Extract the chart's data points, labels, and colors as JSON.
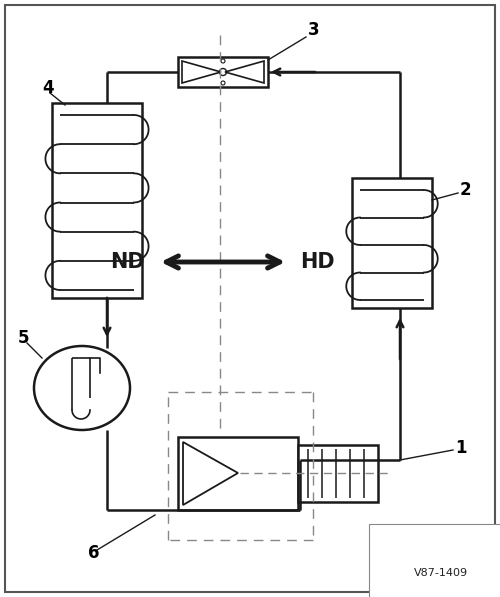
{
  "bg_color": "#ffffff",
  "line_color": "#1a1a1a",
  "dash_color": "#888888",
  "nd_label": "ND",
  "hd_label": "HD",
  "watermark": "V87-1409",
  "labels": [
    "1",
    "2",
    "3",
    "4",
    "5",
    "6"
  ]
}
